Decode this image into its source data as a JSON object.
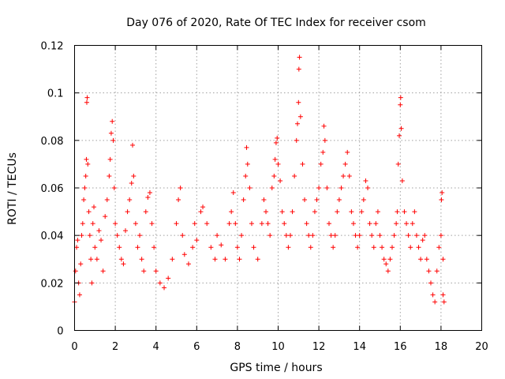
{
  "chart_data": {
    "type": "scatter",
    "title": "Day 076 of 2020, Rate Of TEC Index for receiver csom",
    "xlabel": "GPS time / hours",
    "ylabel": "ROTI / TECUs",
    "xlim": [
      0,
      20
    ],
    "ylim": [
      0,
      0.12
    ],
    "x_ticks": [
      "0",
      "2",
      "4",
      "6",
      "8",
      "10",
      "12",
      "14",
      "16",
      "18",
      "20"
    ],
    "y_ticks": [
      "0",
      "0.02",
      "0.04",
      "0.06",
      "0.08",
      "0.1",
      "0.12"
    ],
    "grid": true,
    "marker": "plus",
    "color": "#ff0000",
    "series": [
      {
        "points": [
          [
            0.0,
            0.012
          ],
          [
            0.05,
            0.025
          ],
          [
            0.1,
            0.035
          ],
          [
            0.15,
            0.038
          ],
          [
            0.2,
            0.02
          ],
          [
            0.25,
            0.015
          ],
          [
            0.3,
            0.028
          ],
          [
            0.35,
            0.04
          ],
          [
            0.4,
            0.045
          ],
          [
            0.45,
            0.055
          ],
          [
            0.5,
            0.06
          ],
          [
            0.55,
            0.065
          ],
          [
            0.58,
            0.072
          ],
          [
            0.6,
            0.096
          ],
          [
            0.62,
            0.098
          ],
          [
            0.65,
            0.07
          ],
          [
            0.7,
            0.05
          ],
          [
            0.75,
            0.04
          ],
          [
            0.8,
            0.03
          ],
          [
            0.85,
            0.02
          ],
          [
            0.9,
            0.045
          ],
          [
            0.95,
            0.052
          ],
          [
            1.0,
            0.035
          ],
          [
            1.1,
            0.03
          ],
          [
            1.2,
            0.042
          ],
          [
            1.3,
            0.038
          ],
          [
            1.4,
            0.025
          ],
          [
            1.5,
            0.048
          ],
          [
            1.6,
            0.055
          ],
          [
            1.7,
            0.065
          ],
          [
            1.75,
            0.072
          ],
          [
            1.8,
            0.083
          ],
          [
            1.85,
            0.088
          ],
          [
            1.9,
            0.08
          ],
          [
            1.95,
            0.06
          ],
          [
            2.0,
            0.045
          ],
          [
            2.1,
            0.04
          ],
          [
            2.2,
            0.035
          ],
          [
            2.3,
            0.03
          ],
          [
            2.4,
            0.028
          ],
          [
            2.5,
            0.042
          ],
          [
            2.6,
            0.05
          ],
          [
            2.7,
            0.055
          ],
          [
            2.8,
            0.062
          ],
          [
            2.85,
            0.078
          ],
          [
            2.9,
            0.065
          ],
          [
            3.0,
            0.045
          ],
          [
            3.1,
            0.035
          ],
          [
            3.2,
            0.04
          ],
          [
            3.3,
            0.03
          ],
          [
            3.4,
            0.025
          ],
          [
            3.5,
            0.05
          ],
          [
            3.6,
            0.056
          ],
          [
            3.7,
            0.058
          ],
          [
            3.8,
            0.045
          ],
          [
            3.9,
            0.035
          ],
          [
            4.0,
            0.025
          ],
          [
            4.2,
            0.02
          ],
          [
            4.4,
            0.018
          ],
          [
            4.6,
            0.022
          ],
          [
            4.8,
            0.03
          ],
          [
            5.0,
            0.045
          ],
          [
            5.1,
            0.055
          ],
          [
            5.2,
            0.06
          ],
          [
            5.3,
            0.04
          ],
          [
            5.4,
            0.032
          ],
          [
            5.6,
            0.028
          ],
          [
            5.8,
            0.035
          ],
          [
            5.9,
            0.045
          ],
          [
            6.0,
            0.038
          ],
          [
            6.2,
            0.05
          ],
          [
            6.3,
            0.052
          ],
          [
            6.5,
            0.045
          ],
          [
            6.7,
            0.035
          ],
          [
            6.9,
            0.03
          ],
          [
            7.0,
            0.04
          ],
          [
            7.2,
            0.036
          ],
          [
            7.4,
            0.03
          ],
          [
            7.6,
            0.045
          ],
          [
            7.7,
            0.05
          ],
          [
            7.8,
            0.058
          ],
          [
            7.9,
            0.045
          ],
          [
            8.0,
            0.035
          ],
          [
            8.1,
            0.03
          ],
          [
            8.2,
            0.04
          ],
          [
            8.3,
            0.055
          ],
          [
            8.4,
            0.065
          ],
          [
            8.45,
            0.077
          ],
          [
            8.5,
            0.07
          ],
          [
            8.6,
            0.06
          ],
          [
            8.7,
            0.045
          ],
          [
            8.8,
            0.035
          ],
          [
            9.0,
            0.03
          ],
          [
            9.2,
            0.045
          ],
          [
            9.3,
            0.055
          ],
          [
            9.4,
            0.05
          ],
          [
            9.5,
            0.045
          ],
          [
            9.6,
            0.04
          ],
          [
            9.7,
            0.06
          ],
          [
            9.8,
            0.065
          ],
          [
            9.85,
            0.072
          ],
          [
            9.9,
            0.079
          ],
          [
            9.95,
            0.081
          ],
          [
            10.0,
            0.07
          ],
          [
            10.1,
            0.063
          ],
          [
            10.2,
            0.05
          ],
          [
            10.3,
            0.045
          ],
          [
            10.4,
            0.04
          ],
          [
            10.5,
            0.035
          ],
          [
            10.6,
            0.04
          ],
          [
            10.7,
            0.05
          ],
          [
            10.8,
            0.065
          ],
          [
            10.9,
            0.08
          ],
          [
            10.95,
            0.087
          ],
          [
            11.0,
            0.096
          ],
          [
            11.02,
            0.11
          ],
          [
            11.05,
            0.115
          ],
          [
            11.1,
            0.09
          ],
          [
            11.2,
            0.07
          ],
          [
            11.3,
            0.055
          ],
          [
            11.4,
            0.045
          ],
          [
            11.5,
            0.04
          ],
          [
            11.6,
            0.035
          ],
          [
            11.7,
            0.04
          ],
          [
            11.8,
            0.05
          ],
          [
            11.9,
            0.055
          ],
          [
            12.0,
            0.06
          ],
          [
            12.1,
            0.07
          ],
          [
            12.2,
            0.075
          ],
          [
            12.25,
            0.086
          ],
          [
            12.3,
            0.08
          ],
          [
            12.4,
            0.06
          ],
          [
            12.5,
            0.045
          ],
          [
            12.6,
            0.04
          ],
          [
            12.7,
            0.035
          ],
          [
            12.8,
            0.04
          ],
          [
            12.9,
            0.05
          ],
          [
            13.0,
            0.055
          ],
          [
            13.1,
            0.06
          ],
          [
            13.2,
            0.065
          ],
          [
            13.3,
            0.07
          ],
          [
            13.4,
            0.075
          ],
          [
            13.5,
            0.065
          ],
          [
            13.6,
            0.05
          ],
          [
            13.7,
            0.045
          ],
          [
            13.8,
            0.04
          ],
          [
            13.9,
            0.035
          ],
          [
            14.0,
            0.04
          ],
          [
            14.1,
            0.05
          ],
          [
            14.2,
            0.055
          ],
          [
            14.3,
            0.063
          ],
          [
            14.4,
            0.06
          ],
          [
            14.5,
            0.045
          ],
          [
            14.6,
            0.04
          ],
          [
            14.7,
            0.035
          ],
          [
            14.8,
            0.045
          ],
          [
            14.9,
            0.05
          ],
          [
            15.0,
            0.04
          ],
          [
            15.1,
            0.035
          ],
          [
            15.2,
            0.03
          ],
          [
            15.3,
            0.028
          ],
          [
            15.4,
            0.025
          ],
          [
            15.5,
            0.03
          ],
          [
            15.6,
            0.035
          ],
          [
            15.7,
            0.04
          ],
          [
            15.8,
            0.045
          ],
          [
            15.85,
            0.05
          ],
          [
            15.9,
            0.07
          ],
          [
            15.95,
            0.082
          ],
          [
            16.0,
            0.095
          ],
          [
            16.02,
            0.098
          ],
          [
            16.05,
            0.085
          ],
          [
            16.1,
            0.063
          ],
          [
            16.2,
            0.05
          ],
          [
            16.3,
            0.045
          ],
          [
            16.4,
            0.04
          ],
          [
            16.5,
            0.035
          ],
          [
            16.6,
            0.045
          ],
          [
            16.7,
            0.05
          ],
          [
            16.8,
            0.04
          ],
          [
            16.9,
            0.035
          ],
          [
            17.0,
            0.03
          ],
          [
            17.1,
            0.038
          ],
          [
            17.2,
            0.04
          ],
          [
            17.3,
            0.03
          ],
          [
            17.4,
            0.025
          ],
          [
            17.5,
            0.02
          ],
          [
            17.6,
            0.015
          ],
          [
            17.7,
            0.012
          ],
          [
            17.8,
            0.025
          ],
          [
            17.9,
            0.035
          ],
          [
            18.0,
            0.04
          ],
          [
            18.02,
            0.055
          ],
          [
            18.05,
            0.058
          ],
          [
            18.1,
            0.03
          ],
          [
            18.1,
            0.015
          ],
          [
            18.15,
            0.012
          ]
        ]
      }
    ]
  }
}
